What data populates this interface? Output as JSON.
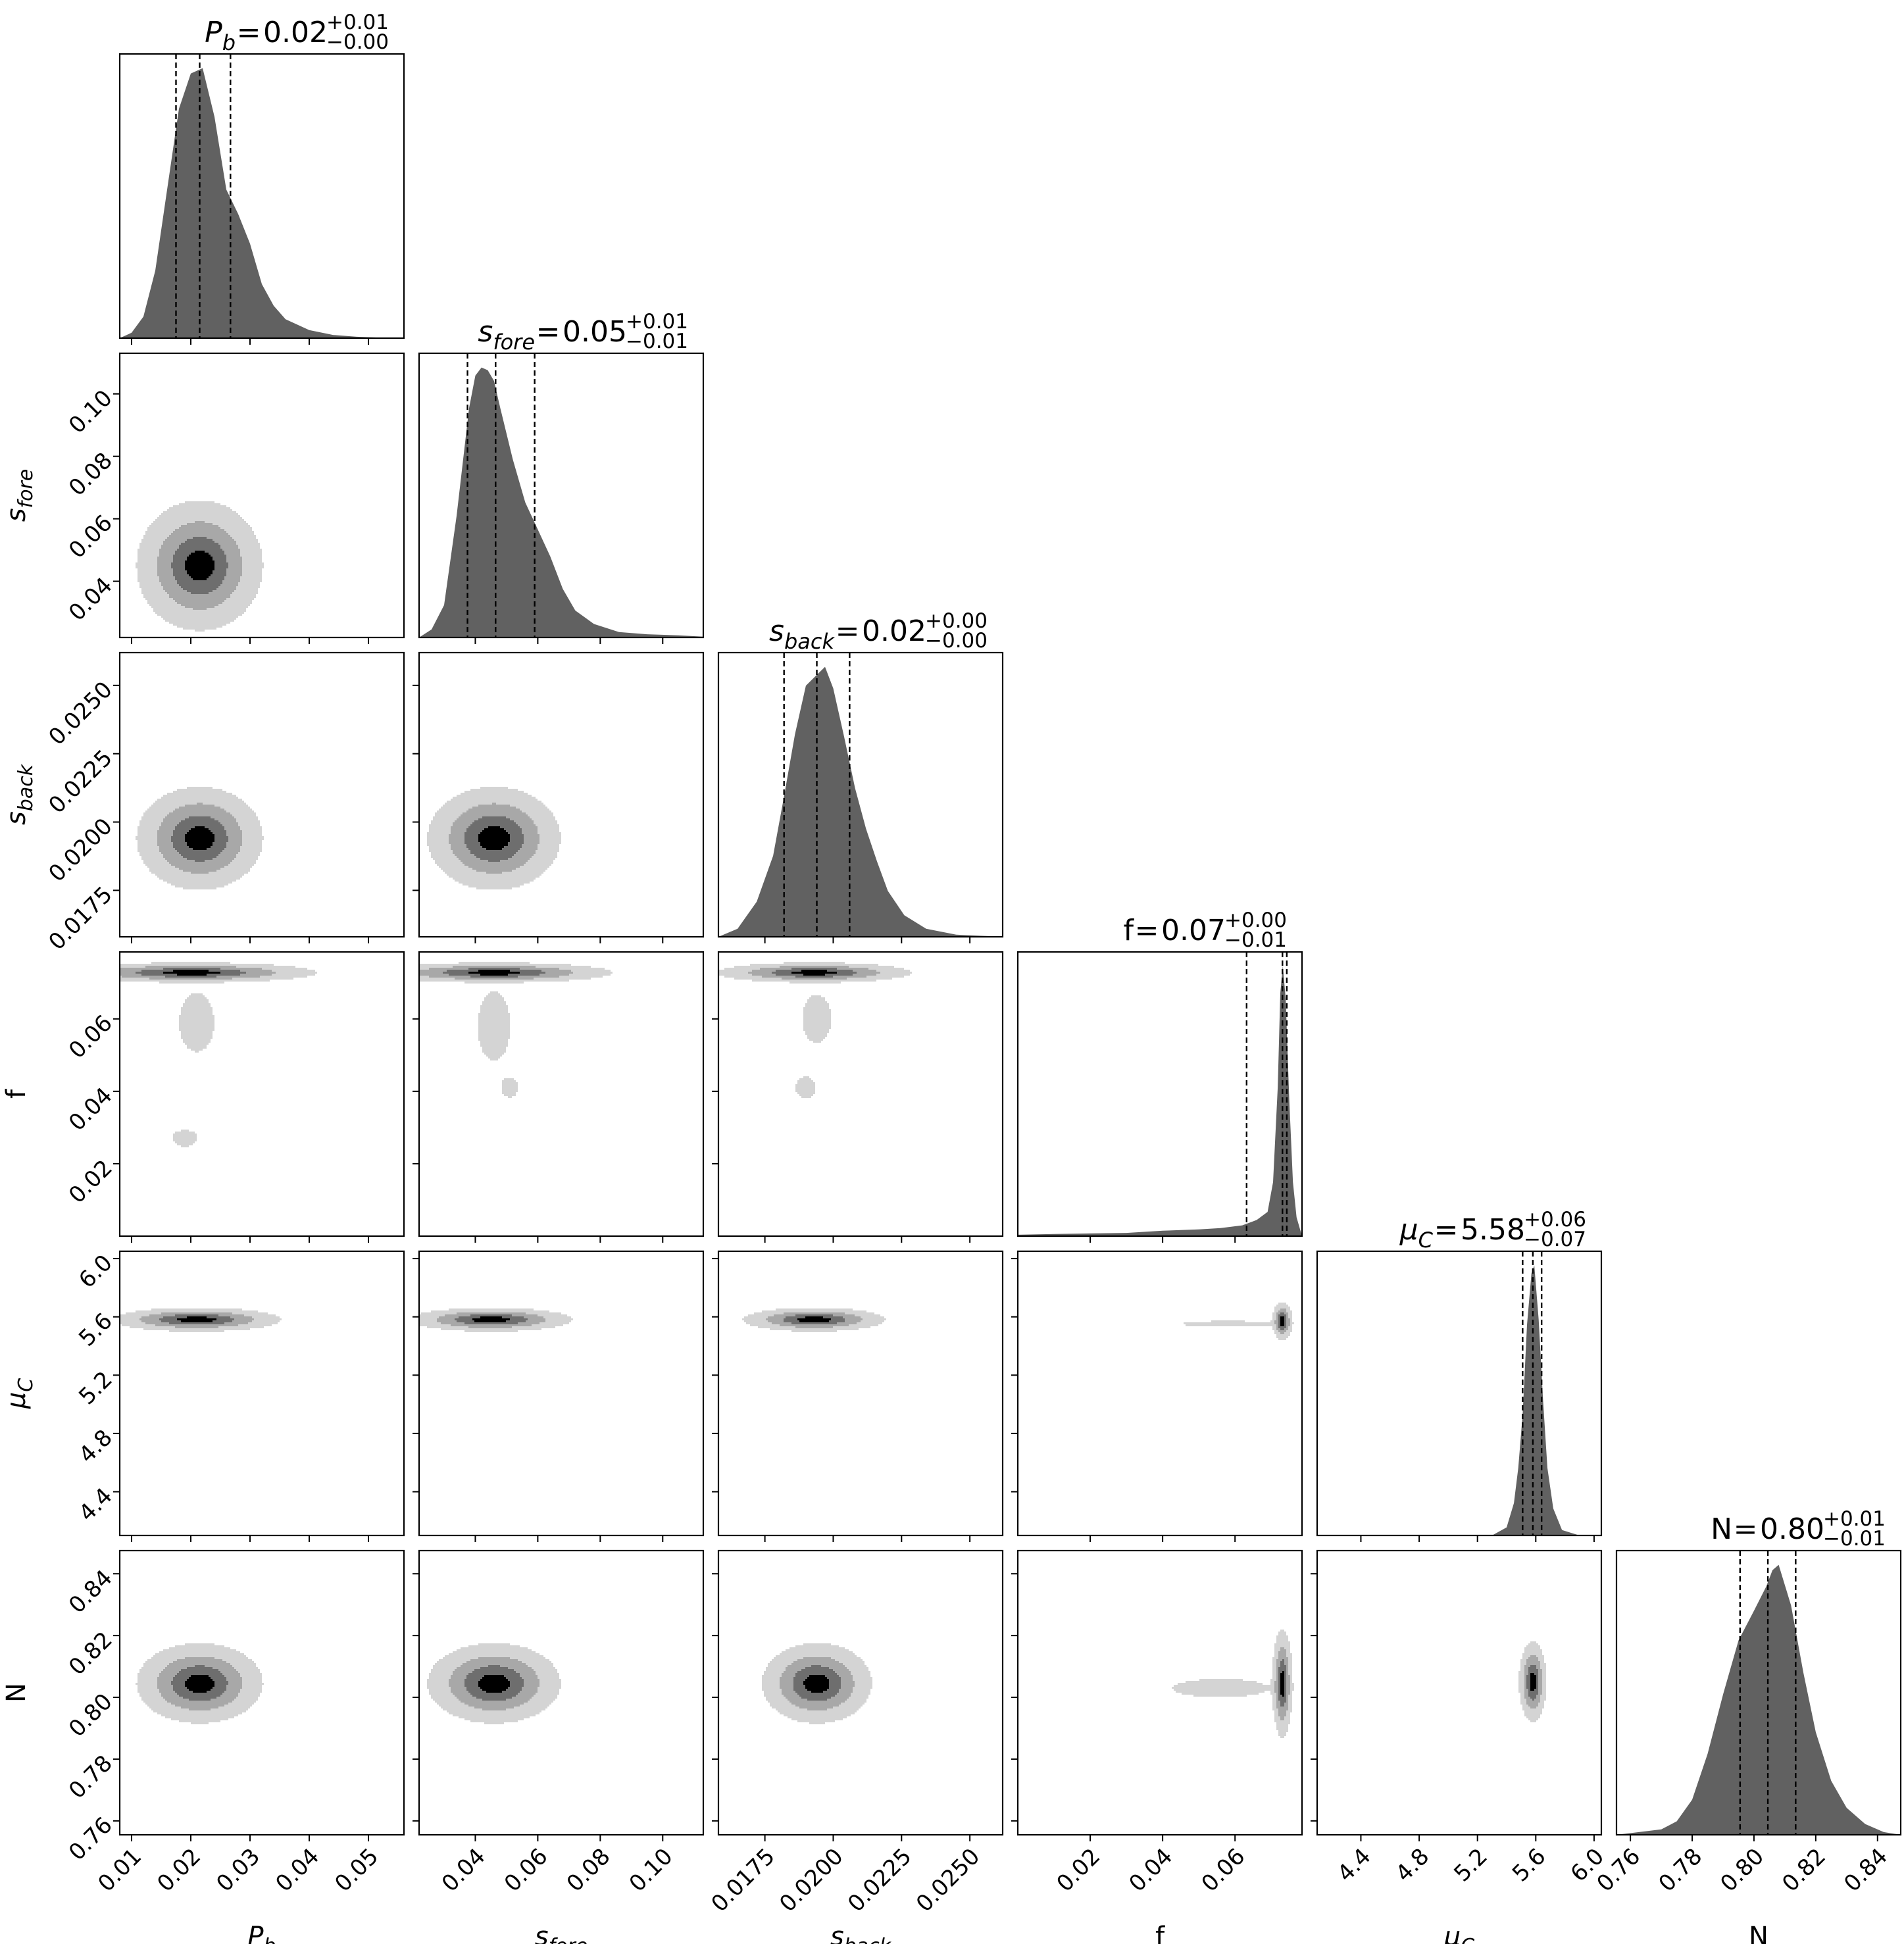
{
  "chart_data": {
    "type": "corner",
    "parameters": [
      {
        "key": "Pb",
        "label": "P",
        "label_sub": "b",
        "label_italic": true,
        "range": [
          0.008,
          0.056
        ],
        "ticks": [
          "0.01",
          "0.02",
          "0.03",
          "0.04",
          "0.05"
        ],
        "title": {
          "name": "P",
          "name_sub": "b",
          "value": "0.02",
          "plus": "+0.01",
          "minus": "−0.00"
        },
        "median": 0.0215,
        "q16": 0.0175,
        "q84": 0.0267,
        "hist": {
          "x": [
            0.008,
            0.01,
            0.012,
            0.014,
            0.016,
            0.018,
            0.02,
            0.022,
            0.024,
            0.026,
            0.028,
            0.03,
            0.032,
            0.034,
            0.036,
            0.04,
            0.044,
            0.048,
            0.052,
            0.056
          ],
          "y": [
            0.0,
            0.02,
            0.08,
            0.25,
            0.55,
            0.85,
            0.98,
            1.0,
            0.82,
            0.55,
            0.46,
            0.35,
            0.2,
            0.12,
            0.07,
            0.03,
            0.012,
            0.005,
            0.002,
            0.0
          ]
        }
      },
      {
        "key": "sfore",
        "label": "s",
        "label_sub": "fore",
        "label_italic": true,
        "range": [
          0.022,
          0.113
        ],
        "ticks": [
          "0.04",
          "0.06",
          "0.08",
          "0.10"
        ],
        "title": {
          "name": "s",
          "name_sub": "fore",
          "value": "0.05",
          "plus": "+0.01",
          "minus": "−0.01"
        },
        "median": 0.0465,
        "q16": 0.0375,
        "q84": 0.059,
        "hist": {
          "x": [
            0.022,
            0.026,
            0.03,
            0.034,
            0.038,
            0.04,
            0.042,
            0.044,
            0.046,
            0.048,
            0.052,
            0.056,
            0.06,
            0.064,
            0.068,
            0.072,
            0.078,
            0.086,
            0.095,
            0.105,
            0.113
          ],
          "y": [
            0.0,
            0.03,
            0.12,
            0.45,
            0.85,
            0.97,
            1.0,
            0.99,
            0.95,
            0.85,
            0.66,
            0.5,
            0.4,
            0.3,
            0.18,
            0.1,
            0.05,
            0.02,
            0.012,
            0.008,
            0.003
          ]
        }
      },
      {
        "key": "sback",
        "label": "s",
        "label_sub": "back",
        "label_italic": true,
        "range": [
          0.0158,
          0.0262
        ],
        "ticks": [
          "0.0175",
          "0.0200",
          "0.0225",
          "0.0250"
        ],
        "title": {
          "name": "s",
          "name_sub": "back",
          "value": "0.02",
          "plus": "+0.00",
          "minus": "−0.00"
        },
        "median": 0.0194,
        "q16": 0.0182,
        "q84": 0.0206,
        "hist": {
          "x": [
            0.0158,
            0.0165,
            0.0172,
            0.0178,
            0.0182,
            0.0186,
            0.019,
            0.0194,
            0.0197,
            0.02,
            0.0204,
            0.0208,
            0.0212,
            0.0216,
            0.022,
            0.0226,
            0.0234,
            0.0245,
            0.0262
          ],
          "y": [
            0.0,
            0.03,
            0.13,
            0.3,
            0.52,
            0.75,
            0.93,
            0.97,
            1.0,
            0.92,
            0.74,
            0.55,
            0.4,
            0.28,
            0.17,
            0.08,
            0.03,
            0.008,
            0.0
          ]
        }
      },
      {
        "key": "f",
        "label": "f",
        "label_sub": "",
        "label_italic": false,
        "range": [
          0.0,
          0.0785
        ],
        "ticks": [
          "0.02",
          "0.04",
          "0.06"
        ],
        "title": {
          "name": "f",
          "name_sub": "",
          "value": "0.07",
          "plus": "+0.00",
          "minus": "−0.01"
        },
        "median": 0.0731,
        "q16": 0.0632,
        "q84": 0.0743,
        "hist": {
          "x": [
            0.0,
            0.01,
            0.02,
            0.03,
            0.04,
            0.05,
            0.056,
            0.062,
            0.066,
            0.069,
            0.0705,
            0.0718,
            0.0725,
            0.0732,
            0.074,
            0.075,
            0.076,
            0.077,
            0.0785
          ],
          "y": [
            0.005,
            0.008,
            0.01,
            0.012,
            0.02,
            0.025,
            0.03,
            0.04,
            0.06,
            0.09,
            0.2,
            0.55,
            0.9,
            1.0,
            0.88,
            0.5,
            0.2,
            0.07,
            0.0
          ]
        }
      },
      {
        "key": "muC",
        "label": "μ",
        "label_sub": "C",
        "label_italic": true,
        "range": [
          4.1,
          6.05
        ],
        "ticks": [
          "4.4",
          "4.8",
          "5.2",
          "5.6",
          "6.0"
        ],
        "title": {
          "name": "μ",
          "name_sub": "C",
          "value": "5.58",
          "plus": "+0.06",
          "minus": "−0.07"
        },
        "median": 5.58,
        "q16": 5.51,
        "q84": 5.64,
        "hist": {
          "x": [
            4.1,
            5.3,
            5.4,
            5.45,
            5.48,
            5.51,
            5.54,
            5.57,
            5.59,
            5.62,
            5.65,
            5.68,
            5.72,
            5.78,
            5.9,
            6.05
          ],
          "y": [
            0.0,
            0.0,
            0.03,
            0.12,
            0.25,
            0.45,
            0.78,
            0.97,
            1.0,
            0.8,
            0.5,
            0.25,
            0.1,
            0.02,
            0.0,
            0.0
          ]
        }
      },
      {
        "key": "N",
        "label": "N",
        "label_sub": "",
        "label_italic": false,
        "range": [
          0.7555,
          0.8475
        ],
        "ticks": [
          "0.76",
          "0.78",
          "0.80",
          "0.82",
          "0.84"
        ],
        "title": {
          "name": "N",
          "name_sub": "",
          "value": "0.80",
          "plus": "+0.01",
          "minus": "−0.01"
        },
        "median": 0.8045,
        "q16": 0.7955,
        "q84": 0.8135,
        "hist": {
          "x": [
            0.7555,
            0.77,
            0.775,
            0.78,
            0.785,
            0.79,
            0.795,
            0.8,
            0.804,
            0.806,
            0.808,
            0.812,
            0.816,
            0.82,
            0.825,
            0.83,
            0.836,
            0.842,
            0.8475
          ],
          "y": [
            0.0,
            0.02,
            0.05,
            0.13,
            0.3,
            0.52,
            0.72,
            0.83,
            0.92,
            0.98,
            1.0,
            0.85,
            0.6,
            0.38,
            0.2,
            0.1,
            0.04,
            0.01,
            0.0
          ]
        }
      }
    ],
    "pairs": [
      {
        "x": "Pb",
        "y": "sfore",
        "clusters": [
          {
            "cx": 0.0215,
            "cy": 0.045,
            "sx": 0.0045,
            "sy": 0.0088
          }
        ]
      },
      {
        "x": "Pb",
        "y": "sback",
        "clusters": [
          {
            "cx": 0.0215,
            "cy": 0.0194,
            "sx": 0.0045,
            "sy": 0.0008
          }
        ]
      },
      {
        "x": "sfore",
        "y": "sback",
        "clusters": [
          {
            "cx": 0.046,
            "cy": 0.0194,
            "sx": 0.009,
            "sy": 0.0008
          }
        ]
      },
      {
        "x": "Pb",
        "y": "f",
        "clusters": [
          {
            "cx": 0.02,
            "cy": 0.0728,
            "sx": 0.009,
            "sy": 0.0012
          },
          {
            "cx": 0.021,
            "cy": 0.059,
            "sx": 0.002,
            "sy": 0.0055,
            "faint": true
          },
          {
            "cx": 0.019,
            "cy": 0.027,
            "sx": 0.0014,
            "sy": 0.0016,
            "faint": true
          }
        ]
      },
      {
        "x": "sfore",
        "y": "f",
        "clusters": [
          {
            "cx": 0.046,
            "cy": 0.0728,
            "sx": 0.016,
            "sy": 0.0012
          },
          {
            "cx": 0.046,
            "cy": 0.058,
            "sx": 0.0035,
            "sy": 0.0065,
            "faint": true
          },
          {
            "cx": 0.051,
            "cy": 0.041,
            "sx": 0.0018,
            "sy": 0.0018,
            "faint": true
          }
        ]
      },
      {
        "x": "sback",
        "y": "f",
        "clusters": [
          {
            "cx": 0.0193,
            "cy": 0.0728,
            "sx": 0.0015,
            "sy": 0.0012
          },
          {
            "cx": 0.0194,
            "cy": 0.06,
            "sx": 0.00035,
            "sy": 0.0045,
            "faint": true
          },
          {
            "cx": 0.019,
            "cy": 0.041,
            "sx": 0.00025,
            "sy": 0.002,
            "faint": true
          }
        ]
      },
      {
        "x": "Pb",
        "y": "muC",
        "clusters": [
          {
            "cx": 0.021,
            "cy": 5.58,
            "sx": 0.006,
            "sy": 0.035
          }
        ]
      },
      {
        "x": "sfore",
        "y": "muC",
        "clusters": [
          {
            "cx": 0.045,
            "cy": 5.58,
            "sx": 0.011,
            "sy": 0.035
          }
        ]
      },
      {
        "x": "sback",
        "y": "muC",
        "clusters": [
          {
            "cx": 0.0193,
            "cy": 5.58,
            "sx": 0.0011,
            "sy": 0.035
          }
        ]
      },
      {
        "x": "f",
        "y": "muC",
        "clusters": [
          {
            "cx": 0.0731,
            "cy": 5.57,
            "sx": 0.0012,
            "sy": 0.055
          },
          {
            "cx": 0.058,
            "cy": 5.55,
            "sx": 0.0085,
            "sy": 0.014,
            "faint": true
          }
        ]
      },
      {
        "x": "Pb",
        "y": "N",
        "clusters": [
          {
            "cx": 0.0215,
            "cy": 0.8045,
            "sx": 0.0045,
            "sy": 0.0055
          }
        ]
      },
      {
        "x": "sfore",
        "y": "N",
        "clusters": [
          {
            "cx": 0.046,
            "cy": 0.8045,
            "sx": 0.009,
            "sy": 0.0055
          }
        ]
      },
      {
        "x": "sback",
        "y": "N",
        "clusters": [
          {
            "cx": 0.0194,
            "cy": 0.8045,
            "sx": 0.00085,
            "sy": 0.0055
          }
        ]
      },
      {
        "x": "f",
        "y": "N",
        "clusters": [
          {
            "cx": 0.0731,
            "cy": 0.8045,
            "sx": 0.0012,
            "sy": 0.0075
          },
          {
            "cx": 0.056,
            "cy": 0.803,
            "sx": 0.009,
            "sy": 0.002,
            "faint": true
          }
        ]
      },
      {
        "x": "muC",
        "y": "N",
        "clusters": [
          {
            "cx": 5.58,
            "cy": 0.805,
            "sx": 0.04,
            "sy": 0.0055
          }
        ]
      }
    ],
    "contour_levels": [
      0.2,
      0.45,
      0.75
    ],
    "colors": {
      "hist_fill": "#616161",
      "contour_fills": [
        "#d4d4d4",
        "#a8a8a8",
        "#6e6e6e",
        "#000000"
      ],
      "line": "#000000"
    },
    "grid": false,
    "legend": "none"
  }
}
